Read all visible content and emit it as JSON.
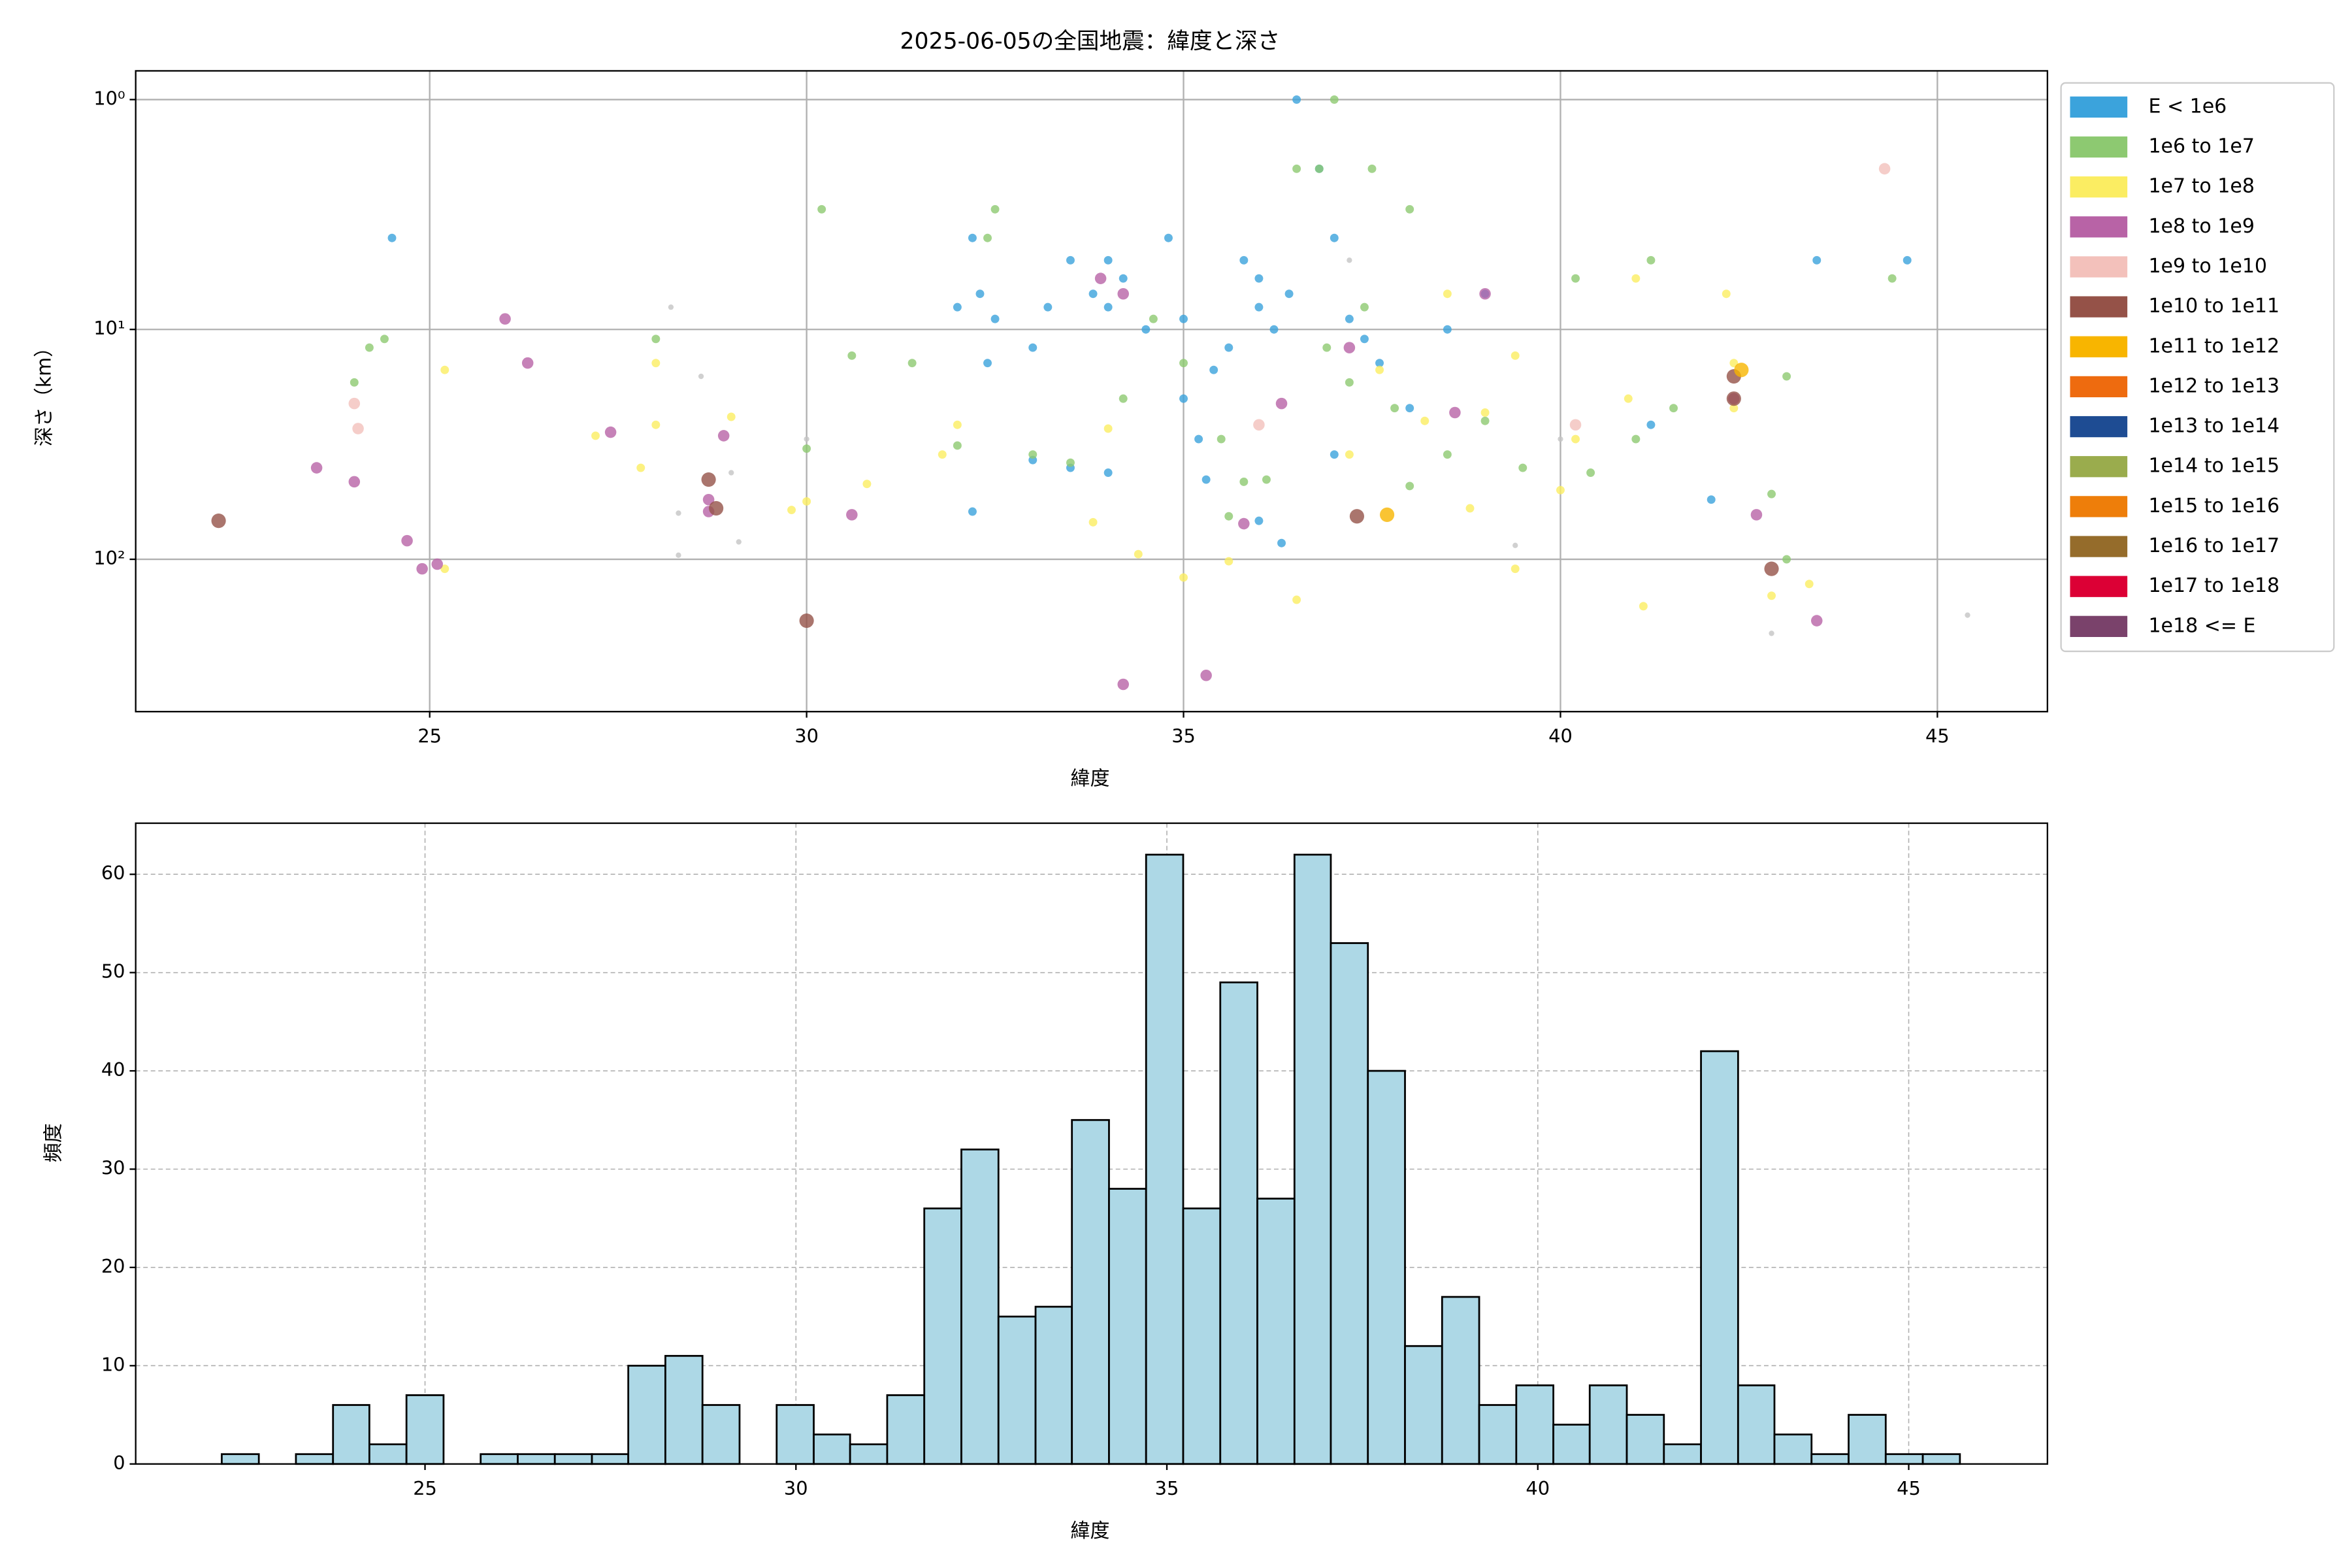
{
  "chart_data": [
    {
      "type": "scatter",
      "title": "2025-06-05の全国地震：緯度と深さ",
      "x_label": "緯度",
      "y_label": "深さ（km）",
      "xlim": [
        21.1,
        46.46
      ],
      "xticks": [
        25,
        30,
        35,
        40,
        45
      ],
      "ylim": [
        0.75,
        460
      ],
      "yscale": "log",
      "yinverted": true,
      "yticks": [
        {
          "value": 1,
          "label": "10⁰"
        },
        {
          "value": 10,
          "label": "10¹"
        },
        {
          "value": 100,
          "label": "10²"
        }
      ],
      "grid": true,
      "legend": "outside right",
      "series": [
        {
          "color": "#c4c4c4",
          "x": [
            28.2,
            28.6,
            28.3,
            29.0,
            29.1,
            28.3,
            30.0,
            37.2,
            39.4,
            42.8,
            45.4,
            40.0
          ],
          "values": [
            8,
            16,
            63,
            42,
            84,
            96,
            30,
            5,
            87,
            210,
            175,
            30
          ]
        },
        {
          "name": "E < 1e6",
          "color": "#3ba3dc",
          "x": [
            24.5,
            32.0,
            32.2,
            32.3,
            32.5,
            32.4,
            33.0,
            33.2,
            33.5,
            33.8,
            34.0,
            34.0,
            34.2,
            34.5,
            34.8,
            35.0,
            35.0,
            35.2,
            35.4,
            35.6,
            35.8,
            36.0,
            36.0,
            36.2,
            36.4,
            36.5,
            36.8,
            37.0,
            37.2,
            37.4,
            37.6,
            38.0,
            38.5,
            39.0,
            33.5,
            34.0,
            35.3,
            36.0,
            36.3,
            37.0,
            42.0,
            43.4,
            44.6,
            41.2,
            32.2,
            33.0
          ],
          "values": [
            4,
            8,
            4,
            7,
            9,
            14,
            12,
            8,
            5,
            7,
            5,
            8,
            6,
            10,
            4,
            9,
            20,
            30,
            15,
            12,
            5,
            8,
            6,
            10,
            7,
            1,
            2,
            4,
            9,
            11,
            14,
            22,
            10,
            7,
            40,
            42,
            45,
            68,
            85,
            35,
            55,
            5,
            5,
            26,
            62,
            37
          ]
        },
        {
          "name": "1e6 to 1e7",
          "color": "#8dc971",
          "x": [
            24.0,
            24.2,
            24.4,
            28.0,
            30.0,
            30.2,
            30.6,
            31.4,
            32.0,
            32.4,
            32.5,
            33.0,
            33.5,
            34.2,
            34.6,
            35.0,
            35.5,
            35.8,
            36.1,
            36.5,
            36.8,
            37.0,
            37.2,
            37.4,
            37.5,
            38.0,
            38.0,
            38.5,
            39.0,
            39.5,
            40.2,
            40.4,
            41.0,
            41.2,
            41.5,
            42.8,
            43.0,
            43.0,
            44.4,
            37.8,
            36.9,
            35.6
          ],
          "values": [
            17,
            12,
            11,
            11,
            33,
            3,
            13,
            14,
            32,
            4,
            3,
            35,
            38,
            20,
            9,
            14,
            30,
            46,
            45,
            2,
            2,
            1,
            17,
            8,
            2,
            3,
            48,
            35,
            25,
            40,
            6,
            42,
            30,
            5,
            22,
            52,
            100,
            16,
            6,
            22,
            12,
            65
          ]
        },
        {
          "name": "1e7 to 1e8",
          "color": "#fbed62",
          "x": [
            25.2,
            25.2,
            27.2,
            27.8,
            28.0,
            28.0,
            29.0,
            29.8,
            30.0,
            30.8,
            31.8,
            32.0,
            33.8,
            34.0,
            34.4,
            35.0,
            35.6,
            36.5,
            37.2,
            37.6,
            38.2,
            38.5,
            39.0,
            39.4,
            40.0,
            40.2,
            40.9,
            41.0,
            41.1,
            42.2,
            42.3,
            42.3,
            42.8,
            43.3,
            39.4,
            38.8
          ],
          "values": [
            15,
            110,
            29,
            40,
            14,
            26,
            24,
            61,
            56,
            47,
            35,
            26,
            69,
            27,
            95,
            120,
            102,
            150,
            35,
            15,
            25,
            7,
            23,
            110,
            50,
            30,
            20,
            6,
            160,
            7,
            14,
            22,
            144,
            128,
            13,
            60
          ]
        },
        {
          "name": "1e8 to 1e9",
          "color": "#b863a6",
          "x": [
            23.5,
            24.0,
            24.7,
            24.9,
            25.1,
            26.0,
            26.3,
            27.4,
            28.7,
            28.7,
            28.9,
            30.6,
            33.9,
            34.2,
            34.2,
            35.3,
            35.8,
            36.3,
            37.2,
            38.6,
            39.0,
            42.6,
            43.4,
            42.3
          ],
          "values": [
            40,
            46,
            83,
            110,
            105,
            9,
            14,
            28,
            55,
            62,
            29,
            64,
            6,
            7,
            350,
            320,
            70,
            21,
            12,
            23,
            7,
            64,
            185,
            20
          ]
        },
        {
          "name": "1e9 to 1e10",
          "color": "#f3c1bb",
          "x": [
            24.0,
            24.05,
            36.0,
            40.2,
            44.3
          ],
          "values": [
            21,
            27,
            26,
            26,
            2
          ]
        },
        {
          "name": "1e10 to 1e11",
          "color": "#955248",
          "x": [
            22.2,
            28.7,
            28.8,
            30.0,
            37.3,
            42.3,
            42.3,
            42.8
          ],
          "values": [
            68,
            45,
            60,
            185,
            65,
            16,
            20,
            110
          ]
        },
        {
          "name": "1e11 to 1e12",
          "color": "#f8b500",
          "x": [
            37.7,
            42.4
          ],
          "values": [
            64,
            15
          ]
        },
        {
          "name": "1e12 to 1e13",
          "color": "#ee6b0f",
          "x": [],
          "values": []
        },
        {
          "name": "1e13 to 1e14",
          "color": "#1e4c93",
          "x": [],
          "values": []
        },
        {
          "name": "1e14 to 1e15",
          "color": "#9aac4d",
          "x": [],
          "values": []
        },
        {
          "name": "1e15 to 1e16",
          "color": "#ee7e0a",
          "x": [],
          "values": []
        },
        {
          "name": "1e16 to 1e17",
          "color": "#956c2b",
          "x": [],
          "values": []
        },
        {
          "name": "1e17 to 1e18",
          "color": "#dc0035",
          "x": [],
          "values": []
        },
        {
          "name": "1e18 <= E",
          "color": "#7a426b",
          "x": [],
          "values": []
        }
      ]
    },
    {
      "type": "histogram",
      "x_label": "緯度",
      "y_label": "頻度",
      "color": "#add8e6",
      "edgecolor": "#000000",
      "xlim": [
        21.1,
        46.87
      ],
      "xticks": [
        25,
        30,
        35,
        40,
        45
      ],
      "ylim": [
        0,
        65.2
      ],
      "yticks": [
        0,
        10,
        20,
        30,
        40,
        50,
        60
      ],
      "grid": true,
      "grid_style": "dashed",
      "bins": [
        22.26,
        22.76,
        23.26,
        23.76,
        24.25,
        24.75,
        25.25,
        25.75,
        26.25,
        26.75,
        27.25,
        27.74,
        28.24,
        28.74,
        29.24,
        29.74,
        30.24,
        30.73,
        31.23,
        31.73,
        32.23,
        32.73,
        33.23,
        33.72,
        34.22,
        34.72,
        35.22,
        35.72,
        36.22,
        36.72,
        37.21,
        37.71,
        38.21,
        38.71,
        39.21,
        39.71,
        40.21,
        40.7,
        41.2,
        41.7,
        42.2,
        42.7,
        43.19,
        43.69,
        44.19,
        44.69,
        45.19,
        45.69
      ],
      "values": [
        1,
        0,
        1,
        6,
        2,
        7,
        0,
        1,
        1,
        1,
        1,
        10,
        11,
        6,
        0,
        6,
        3,
        2,
        7,
        26,
        32,
        15,
        16,
        35,
        28,
        62,
        26,
        49,
        27,
        62,
        53,
        40,
        12,
        17,
        6,
        8,
        4,
        8,
        5,
        2,
        42,
        8,
        3,
        1,
        5,
        1,
        1
      ]
    }
  ]
}
